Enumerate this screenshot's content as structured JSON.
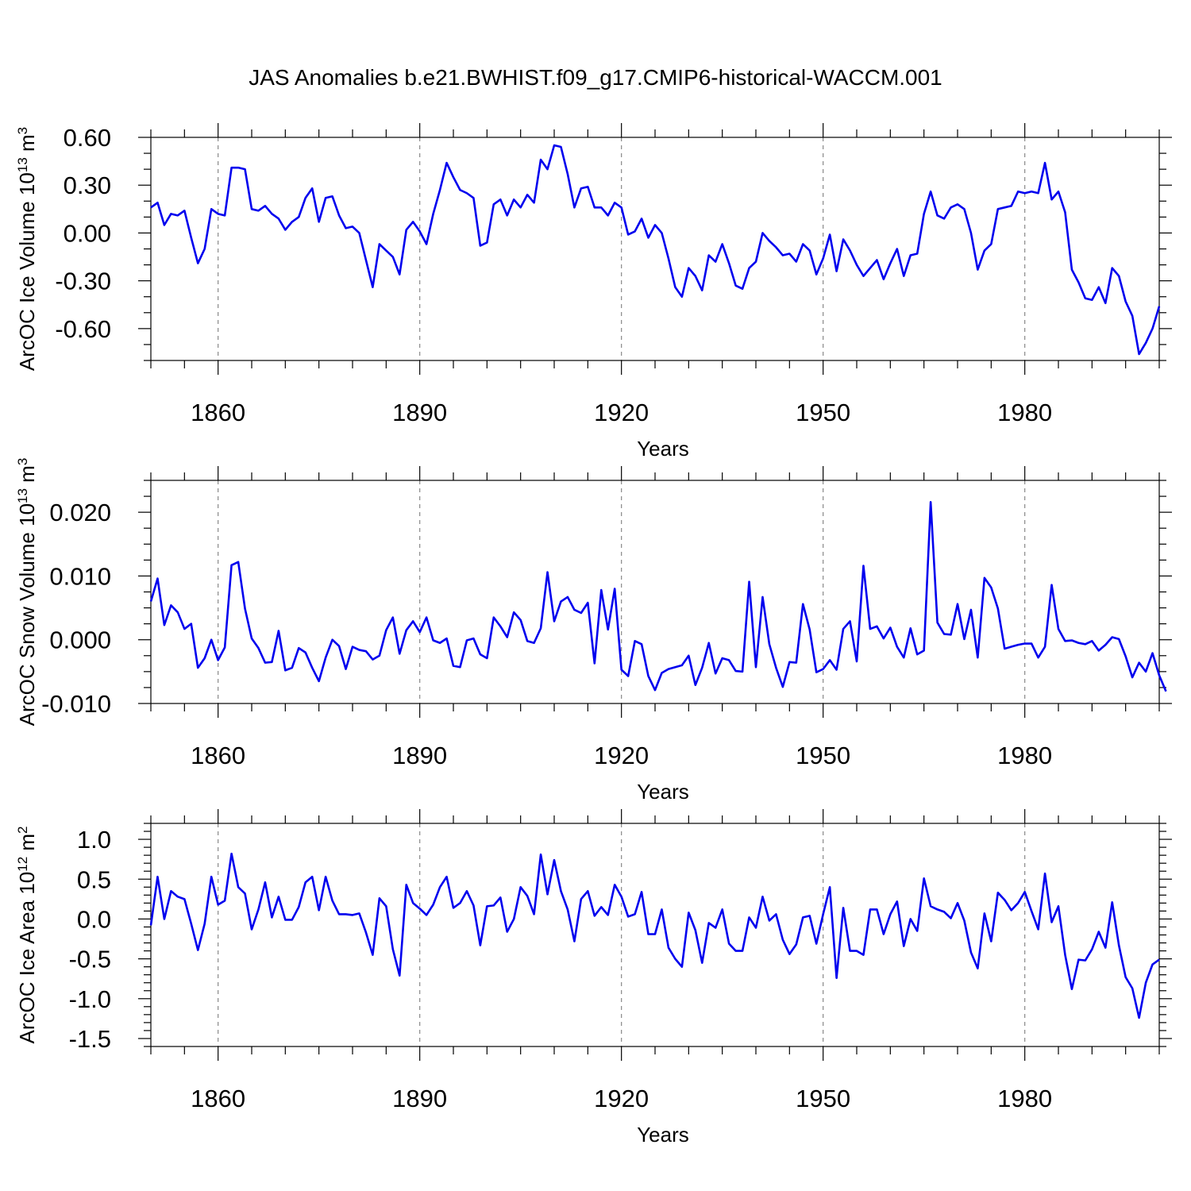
{
  "title": "JAS Anomalies b.e21.BWHIST.f09_g17.CMIP6-historical-WACCM.001",
  "colors": {
    "line": "#0000ee",
    "grid": "#888888",
    "frame": "#000000"
  },
  "chart_data": [
    {
      "type": "line",
      "name": "ice-volume",
      "ylabel": "ArcOC Ice Volume 10",
      "ylabel_exp": "13",
      "ylabel_unit": " m",
      "ylabel_unit_exp": "3",
      "xlabel": "Years",
      "xlim": [
        1850,
        2000
      ],
      "ylim": [
        -0.8,
        0.6
      ],
      "xticks": [
        "1860",
        "1890",
        "1920",
        "1950",
        "1980"
      ],
      "yticks": [
        "0.60",
        "0.30",
        "0.00",
        "-0.30",
        "-0.60"
      ],
      "grid": "vertical-dashed",
      "x_start": 1850,
      "values": [
        0.16,
        0.19,
        0.05,
        0.12,
        0.11,
        0.14,
        -0.03,
        -0.19,
        -0.1,
        0.15,
        0.12,
        0.11,
        0.41,
        0.41,
        0.4,
        0.15,
        0.14,
        0.17,
        0.12,
        0.09,
        0.02,
        0.07,
        0.1,
        0.22,
        0.28,
        0.07,
        0.22,
        0.23,
        0.11,
        0.03,
        0.04,
        0.0,
        -0.17,
        -0.34,
        -0.07,
        -0.11,
        -0.15,
        -0.26,
        0.02,
        0.07,
        0.01,
        -0.07,
        0.12,
        0.27,
        0.44,
        0.35,
        0.27,
        0.25,
        0.22,
        -0.08,
        -0.06,
        0.18,
        0.21,
        0.11,
        0.21,
        0.16,
        0.24,
        0.19,
        0.46,
        0.4,
        0.55,
        0.54,
        0.37,
        0.16,
        0.28,
        0.29,
        0.16,
        0.16,
        0.11,
        0.19,
        0.16,
        -0.01,
        0.01,
        0.09,
        -0.03,
        0.05,
        0.0,
        -0.16,
        -0.34,
        -0.4,
        -0.22,
        -0.27,
        -0.36,
        -0.14,
        -0.18,
        -0.07,
        -0.19,
        -0.33,
        -0.35,
        -0.22,
        -0.18,
        0.0,
        -0.05,
        -0.09,
        -0.14,
        -0.13,
        -0.18,
        -0.07,
        -0.11,
        -0.26,
        -0.16,
        -0.01,
        -0.24,
        -0.04,
        -0.11,
        -0.2,
        -0.27,
        -0.22,
        -0.17,
        -0.29,
        -0.19,
        -0.1,
        -0.27,
        -0.14,
        -0.13,
        0.12,
        0.26,
        0.11,
        0.09,
        0.16,
        0.18,
        0.15,
        0.0,
        -0.23,
        -0.11,
        -0.07,
        0.15,
        0.16,
        0.17,
        0.26,
        0.25,
        0.26,
        0.25,
        0.44,
        0.21,
        0.26,
        0.13,
        -0.23,
        -0.31,
        -0.41,
        -0.42,
        -0.34,
        -0.44,
        -0.22,
        -0.27,
        -0.43,
        -0.52,
        -0.76,
        -0.69,
        -0.6,
        -0.46
      ]
    },
    {
      "type": "line",
      "name": "snow-volume",
      "ylabel": "ArcOC Snow Volume 10",
      "ylabel_exp": "13",
      "ylabel_unit": " m",
      "ylabel_unit_exp": "3",
      "xlabel": "Years",
      "xlim": [
        1850,
        2000
      ],
      "ylim": [
        -0.01,
        0.025
      ],
      "xticks": [
        "1860",
        "1890",
        "1920",
        "1950",
        "1980"
      ],
      "yticks": [
        "0.020",
        "0.010",
        "0.000",
        "-0.010"
      ],
      "grid": "vertical-dashed",
      "x_start": 1850,
      "values": [
        0.006,
        0.0096,
        0.0023,
        0.0054,
        0.0043,
        0.0017,
        0.0025,
        -0.0044,
        -0.0029,
        0.0,
        -0.0032,
        -0.0012,
        0.0117,
        0.0122,
        0.0049,
        0.0002,
        -0.0013,
        -0.0036,
        -0.0035,
        0.0014,
        -0.0048,
        -0.0044,
        -0.0013,
        -0.002,
        -0.0044,
        -0.0065,
        -0.0028,
        0.0,
        -0.001,
        -0.0046,
        -0.0011,
        -0.0016,
        -0.0018,
        -0.0031,
        -0.0025,
        0.0015,
        0.0035,
        -0.0022,
        0.0015,
        0.0029,
        0.0012,
        0.0035,
        -0.0001,
        -0.0005,
        0.0002,
        -0.0041,
        -0.0043,
        -0.0001,
        0.0002,
        -0.0023,
        -0.0029,
        0.0035,
        0.0021,
        0.0004,
        0.0043,
        0.0031,
        -0.0002,
        -0.0005,
        0.0018,
        0.0106,
        0.0029,
        0.006,
        0.0067,
        0.0047,
        0.0042,
        0.0058,
        -0.0037,
        0.0078,
        0.0016,
        0.008,
        -0.0047,
        -0.0057,
        -0.0002,
        -0.0007,
        -0.0057,
        -0.0079,
        -0.0052,
        -0.0046,
        -0.0043,
        -0.004,
        -0.0025,
        -0.0071,
        -0.0044,
        -0.0005,
        -0.0053,
        -0.0029,
        -0.0032,
        -0.0049,
        -0.005,
        0.0091,
        -0.0043,
        0.0067,
        -0.0007,
        -0.0044,
        -0.0074,
        -0.0035,
        -0.0036,
        0.0056,
        0.0016,
        -0.0051,
        -0.0046,
        -0.0032,
        -0.0047,
        0.0017,
        0.0029,
        -0.0034,
        0.0116,
        0.0017,
        0.0021,
        0.0002,
        0.0019,
        -0.0011,
        -0.0028,
        0.0018,
        -0.0023,
        -0.0017,
        0.0216,
        0.0027,
        0.0009,
        0.0008,
        0.0056,
        0.0001,
        0.0047,
        -0.0028,
        0.0097,
        0.0082,
        0.0049,
        -0.0014,
        -0.0011,
        -0.0008,
        -0.0006,
        -0.0006,
        -0.0028,
        -0.0011,
        0.0086,
        0.0017,
        -0.0002,
        -0.0001,
        -0.0005,
        -0.0007,
        -0.0002,
        -0.0017,
        -0.0008,
        0.0004,
        0.0001,
        -0.0026,
        -0.0059,
        -0.0036,
        -0.005,
        -0.0021,
        -0.0056,
        -0.0081
      ]
    },
    {
      "type": "line",
      "name": "ice-area",
      "ylabel": "ArcOC Ice Area 10",
      "ylabel_exp": "12",
      "ylabel_unit": " m",
      "ylabel_unit_exp": "2",
      "xlabel": "Years",
      "xlim": [
        1850,
        2000
      ],
      "ylim": [
        -1.6,
        1.2
      ],
      "xticks": [
        "1860",
        "1890",
        "1920",
        "1950",
        "1980"
      ],
      "yticks": [
        "1.0",
        "0.5",
        "0.0",
        "-0.5",
        "-1.0",
        "-1.5"
      ],
      "grid": "vertical-dashed",
      "x_start": 1850,
      "values": [
        -0.08,
        0.53,
        0.0,
        0.35,
        0.28,
        0.25,
        -0.06,
        -0.39,
        -0.06,
        0.53,
        0.18,
        0.23,
        0.82,
        0.4,
        0.32,
        -0.13,
        0.12,
        0.46,
        0.02,
        0.28,
        -0.01,
        -0.01,
        0.15,
        0.46,
        0.53,
        0.11,
        0.53,
        0.23,
        0.06,
        0.06,
        0.05,
        0.07,
        -0.17,
        -0.45,
        0.26,
        0.16,
        -0.38,
        -0.71,
        0.43,
        0.2,
        0.13,
        0.05,
        0.18,
        0.4,
        0.53,
        0.14,
        0.2,
        0.35,
        0.17,
        -0.33,
        0.16,
        0.17,
        0.27,
        -0.16,
        0.0,
        0.4,
        0.29,
        0.06,
        0.81,
        0.31,
        0.74,
        0.35,
        0.12,
        -0.28,
        0.25,
        0.35,
        0.04,
        0.15,
        0.05,
        0.43,
        0.28,
        0.03,
        0.06,
        0.34,
        -0.19,
        -0.19,
        0.12,
        -0.36,
        -0.5,
        -0.6,
        0.08,
        -0.14,
        -0.55,
        -0.05,
        -0.11,
        0.12,
        -0.31,
        -0.4,
        -0.4,
        0.02,
        -0.11,
        0.28,
        -0.02,
        0.06,
        -0.26,
        -0.44,
        -0.32,
        0.02,
        0.04,
        -0.31,
        0.06,
        0.4,
        -0.74,
        0.14,
        -0.4,
        -0.4,
        -0.45,
        0.12,
        0.12,
        -0.19,
        0.06,
        0.22,
        -0.34,
        0.0,
        -0.15,
        0.51,
        0.16,
        0.12,
        0.09,
        0.01,
        0.2,
        -0.02,
        -0.42,
        -0.62,
        0.07,
        -0.28,
        0.33,
        0.24,
        0.11,
        0.2,
        0.34,
        0.1,
        -0.13,
        0.57,
        -0.04,
        0.16,
        -0.45,
        -0.88,
        -0.51,
        -0.52,
        -0.38,
        -0.16,
        -0.36,
        0.21,
        -0.33,
        -0.73,
        -0.87,
        -1.24,
        -0.8,
        -0.57,
        -0.51
      ]
    }
  ]
}
